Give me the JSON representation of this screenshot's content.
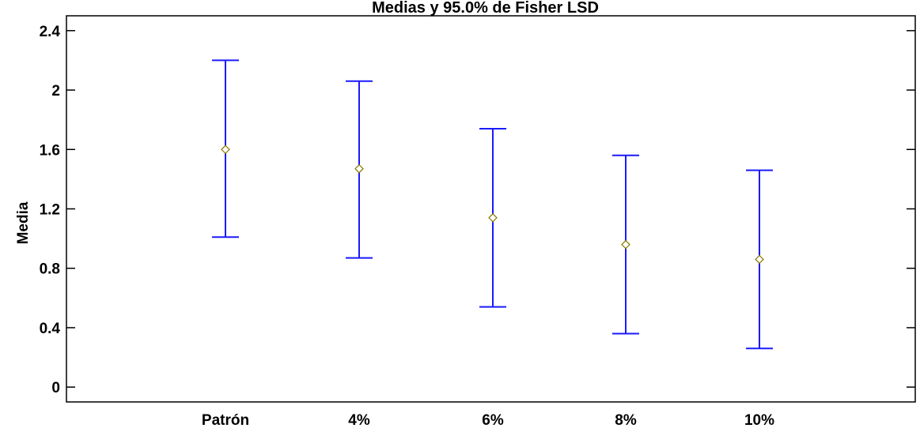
{
  "chart_data": {
    "type": "errorbar",
    "title": "Medias y 95.0% de Fisher LSD",
    "xlabel": "",
    "ylabel": "Media",
    "ylim": [
      -0.1,
      2.5
    ],
    "yticks": [
      "0",
      "0.4",
      "0.8",
      "1.2",
      "1.6",
      "2",
      "2.4"
    ],
    "ytick_values": [
      0,
      0.4,
      0.8,
      1.2,
      1.6,
      2.0,
      2.4
    ],
    "categories": [
      "Patrón",
      "4%",
      "6%",
      "8%",
      "10%"
    ],
    "means": [
      1.6,
      1.47,
      1.14,
      0.96,
      0.86
    ],
    "lower": [
      1.01,
      0.87,
      0.54,
      0.36,
      0.26
    ],
    "upper": [
      2.2,
      2.06,
      1.74,
      1.56,
      1.46
    ],
    "grid": false,
    "colors": {
      "interval": "#1a1aff",
      "mean_marker": "#8a7a00",
      "axes": "#000000"
    }
  }
}
